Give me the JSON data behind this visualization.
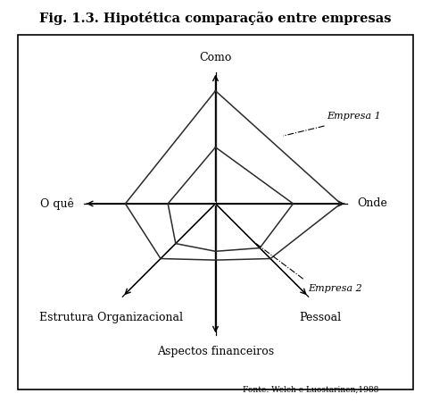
{
  "title": "Fig. 1.3. Hipotética comparação entre empresas",
  "axes_labels": [
    "Como",
    "Onde",
    "Pessoal",
    "Aspectos financeiros",
    "Estrutura Organizacional",
    "O quê"
  ],
  "empresa1_label": "Empresa 1",
  "empresa2_label": "Empresa 2",
  "fonte": "Fonte: Welch e Luostarinen,1988",
  "bg_color": "#ffffff",
  "line_color": "#2a2a2a",
  "axis_color": "#000000",
  "n_axes": 6,
  "angles_deg": [
    90,
    0,
    -45,
    -90,
    -135,
    180
  ],
  "empresa1_values": [
    0.9,
    1.0,
    0.62,
    0.45,
    0.62,
    0.72
  ],
  "empresa2_values": [
    0.45,
    0.62,
    0.5,
    0.38,
    0.45,
    0.38
  ],
  "max_r": 1.0,
  "title_fontsize": 10.5,
  "label_fontsize": 9
}
